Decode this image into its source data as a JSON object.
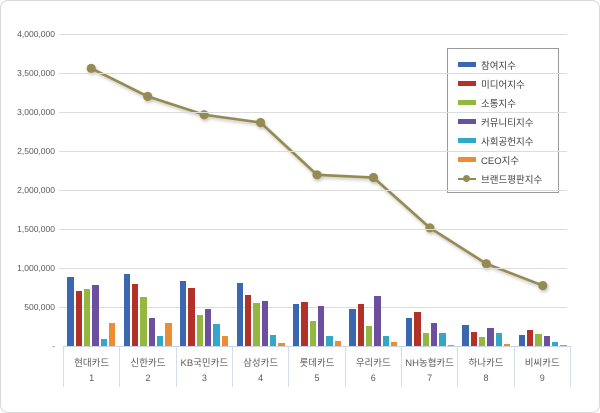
{
  "chart_data": {
    "type": "bar",
    "title": "",
    "xlabel": "",
    "ylabel": "",
    "ylim": [
      0,
      4000000
    ],
    "ytick_step": 500000,
    "grid": true,
    "legend_position": "upper right",
    "y_ticks": [
      {
        "label": "4,000,000",
        "value": 4000000
      },
      {
        "label": "3,500,000",
        "value": 3500000
      },
      {
        "label": "3,000,000",
        "value": 3000000
      },
      {
        "label": "2,500,000",
        "value": 2500000
      },
      {
        "label": "2,000,000",
        "value": 2000000
      },
      {
        "label": "1,500,000",
        "value": 1500000
      },
      {
        "label": "1,000,000",
        "value": 1000000
      },
      {
        "label": "500,000",
        "value": 500000
      },
      {
        "label": "-",
        "value": 0
      }
    ],
    "categories": [
      "현대카드",
      "신한카드",
      "KB국민카드",
      "삼성카드",
      "롯데카드",
      "우리카드",
      "NH농협카드",
      "하나카드",
      "비씨카드"
    ],
    "category_ranks": [
      "1",
      "2",
      "3",
      "4",
      "5",
      "6",
      "7",
      "8",
      "9"
    ],
    "series": [
      {
        "name": "참여지수",
        "color": "#3B67B1",
        "values": [
          880000,
          920000,
          830000,
          805000,
          540000,
          470000,
          360000,
          275000,
          140000
        ]
      },
      {
        "name": "미디어지수",
        "color": "#B23128",
        "values": [
          700000,
          795000,
          740000,
          655000,
          560000,
          535000,
          430000,
          180000,
          210000
        ]
      },
      {
        "name": "소통지수",
        "color": "#94B740",
        "values": [
          725000,
          625000,
          400000,
          555000,
          320000,
          260000,
          170000,
          115000,
          160000
        ]
      },
      {
        "name": "커뮤니티지수",
        "color": "#6C4F9F",
        "values": [
          785000,
          365000,
          480000,
          575000,
          515000,
          640000,
          290000,
          225000,
          125000
        ]
      },
      {
        "name": "사회공헌지수",
        "color": "#31A8C8",
        "values": [
          85000,
          130000,
          285000,
          140000,
          125000,
          125000,
          165000,
          165000,
          50000
        ]
      },
      {
        "name": "CEO지수",
        "color": "#ED8D31",
        "values": [
          300000,
          290000,
          130000,
          40000,
          65000,
          50000,
          15000,
          30000,
          15000
        ]
      }
    ],
    "line_series": {
      "name": "브랜드평판지수",
      "color": "#948A54",
      "values": [
        3560000,
        3200000,
        2965000,
        2865000,
        2195000,
        2160000,
        1515000,
        1055000,
        775000
      ]
    },
    "colors": {
      "gridline": "#dcdcdc",
      "axis_line": "#c9d4e4",
      "tick_text": "#595959",
      "legend_border": "#9a9a9a"
    }
  }
}
